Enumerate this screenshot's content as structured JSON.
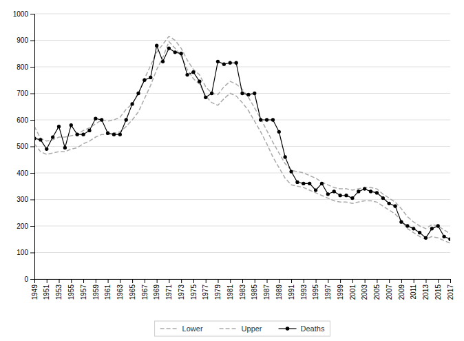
{
  "chart_data": {
    "type": "line",
    "x": [
      1949,
      1950,
      1951,
      1952,
      1953,
      1954,
      1955,
      1956,
      1957,
      1958,
      1959,
      1960,
      1961,
      1962,
      1963,
      1964,
      1965,
      1966,
      1967,
      1968,
      1969,
      1970,
      1971,
      1972,
      1973,
      1974,
      1975,
      1976,
      1977,
      1978,
      1979,
      1980,
      1981,
      1982,
      1983,
      1984,
      1985,
      1986,
      1987,
      1988,
      1989,
      1990,
      1991,
      1992,
      1993,
      1994,
      1995,
      1996,
      1997,
      1998,
      1999,
      2000,
      2001,
      2002,
      2003,
      2004,
      2005,
      2006,
      2007,
      2008,
      2009,
      2010,
      2011,
      2012,
      2013,
      2014,
      2015,
      2016,
      2017
    ],
    "xlim": [
      1949,
      2017
    ],
    "xticks": [
      1949,
      1951,
      1953,
      1955,
      1957,
      1959,
      1961,
      1963,
      1965,
      1967,
      1969,
      1971,
      1973,
      1975,
      1977,
      1979,
      1981,
      1983,
      1985,
      1987,
      1989,
      1991,
      1993,
      1995,
      1997,
      1999,
      2001,
      2003,
      2005,
      2007,
      2009,
      2011,
      2013,
      2015,
      2017
    ],
    "ylim": [
      0,
      1000
    ],
    "yticks": [
      0,
      100,
      200,
      300,
      400,
      500,
      600,
      700,
      800,
      900,
      1000
    ],
    "grid": true,
    "legend": "bottom",
    "series": [
      {
        "name": "Lower",
        "color": "#aaaaaa",
        "line_style": "dashed",
        "values": [
          510,
          480,
          470,
          475,
          480,
          480,
          490,
          495,
          510,
          520,
          535,
          545,
          545,
          550,
          555,
          575,
          600,
          630,
          680,
          730,
          790,
          835,
          895,
          870,
          840,
          790,
          755,
          735,
          690,
          665,
          655,
          680,
          700,
          690,
          665,
          635,
          595,
          555,
          510,
          460,
          420,
          380,
          355,
          350,
          345,
          335,
          325,
          315,
          305,
          295,
          290,
          290,
          285,
          290,
          295,
          295,
          290,
          275,
          260,
          245,
          220,
          190,
          175,
          160,
          150,
          160,
          155,
          145,
          135
        ]
      },
      {
        "name": "Upper",
        "color": "#aaaaaa",
        "line_style": "dashed",
        "values": [
          575,
          530,
          520,
          525,
          535,
          535,
          540,
          545,
          560,
          570,
          585,
          600,
          595,
          600,
          610,
          640,
          660,
          700,
          755,
          805,
          855,
          885,
          915,
          900,
          870,
          825,
          790,
          770,
          725,
          700,
          695,
          725,
          745,
          735,
          715,
          685,
          645,
          605,
          560,
          515,
          475,
          435,
          410,
          405,
          400,
          390,
          380,
          365,
          355,
          345,
          340,
          340,
          335,
          340,
          345,
          345,
          340,
          320,
          305,
          290,
          265,
          235,
          215,
          200,
          190,
          205,
          200,
          185,
          170
        ]
      },
      {
        "name": "Deaths",
        "color": "#000000",
        "line_style": "solid",
        "marker": "circle",
        "values": [
          530,
          525,
          490,
          535,
          575,
          495,
          580,
          545,
          545,
          560,
          605,
          600,
          550,
          545,
          545,
          600,
          660,
          700,
          750,
          760,
          880,
          820,
          870,
          855,
          850,
          770,
          780,
          745,
          685,
          700,
          820,
          810,
          815,
          815,
          700,
          695,
          700,
          600,
          600,
          600,
          555,
          460,
          405,
          365,
          360,
          360,
          335,
          360,
          320,
          330,
          315,
          315,
          305,
          330,
          340,
          330,
          325,
          305,
          285,
          275,
          215,
          200,
          190,
          175,
          155,
          190,
          200,
          160,
          150
        ]
      }
    ]
  }
}
